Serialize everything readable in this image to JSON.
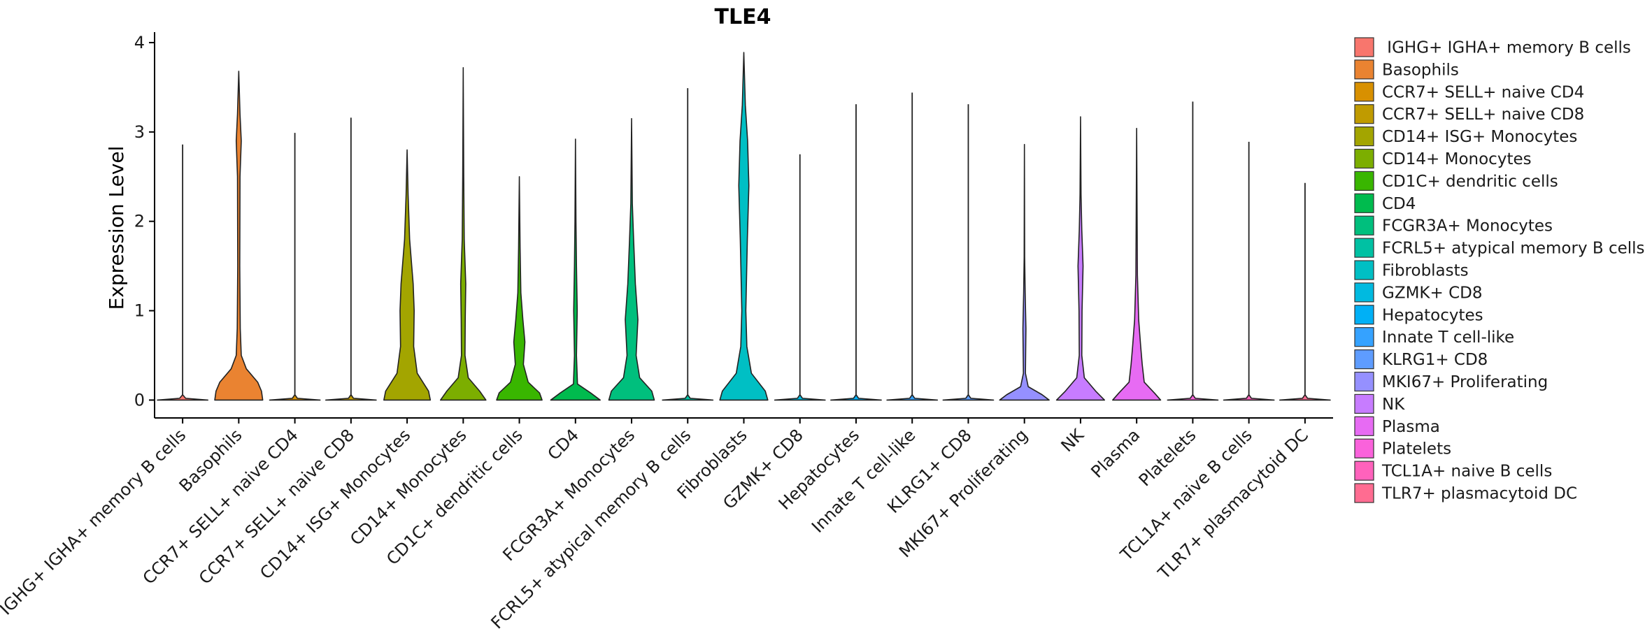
{
  "chart_data": {
    "type": "violin",
    "title": "TLE4",
    "xlabel": "",
    "ylabel": "Expression Level",
    "ylim": [
      -0.2,
      4.07
    ],
    "yticks": [
      0,
      1,
      2,
      3,
      4
    ],
    "legend_position": "right",
    "categories": [
      "IGHG+ IGHA+ memory B cells",
      "Basophils",
      "CCR7+ SELL+ naive CD4",
      "CCR7+ SELL+ naive CD8",
      "CD14+ ISG+ Monocytes",
      "CD14+ Monocytes",
      "CD1C+ dendritic cells",
      "CD4",
      "FCGR3A+ Monocytes",
      "FCRL5+ atypical memory B cells",
      "Fibroblasts",
      "GZMK+ CD8",
      "Hepatocytes",
      "Innate T cell-like",
      "KLRG1+ CD8",
      "MKI67+ Proliferating",
      "NK",
      "Plasma",
      "Platelets",
      "TCL1A+ naive B cells",
      "TLR7+ plasmacytoid DC"
    ],
    "legend_labels": [
      " IGHG+ IGHA+ memory B cells",
      "Basophils",
      "CCR7+ SELL+ naive CD4",
      "CCR7+ SELL+ naive CD8",
      "CD14+ ISG+ Monocytes",
      "CD14+ Monocytes",
      "CD1C+ dendritic cells",
      "CD4",
      "FCGR3A+ Monocytes",
      "FCRL5+ atypical memory B cells",
      "Fibroblasts",
      "GZMK+ CD8",
      "Hepatocytes",
      "Innate T cell-like",
      "KLRG1+ CD8",
      "MKI67+ Proliferating",
      "NK",
      "Plasma",
      "Platelets",
      "TCL1A+ naive B cells",
      "TLR7+ plasmacytoid DC"
    ],
    "colors": [
      "#F8766D",
      "#EA8331",
      "#D89000",
      "#C09B00",
      "#A3A500",
      "#7CAE00",
      "#39B600",
      "#00BB4E",
      "#00BF7D",
      "#00C1A3",
      "#00BFC4",
      "#00BAE0",
      "#00B0F6",
      "#35A2FF",
      "#5E9CFF",
      "#9590FF",
      "#C77CFF",
      "#E76BF3",
      "#FA62DB",
      "#FF62BC",
      "#FF6C91"
    ],
    "max_values": [
      2.86,
      3.68,
      2.99,
      3.16,
      2.8,
      3.72,
      2.5,
      2.92,
      3.15,
      3.49,
      3.89,
      2.75,
      3.31,
      3.44,
      3.31,
      2.86,
      3.17,
      3.04,
      3.34,
      2.89,
      2.43
    ],
    "density_profiles": [
      [
        [
          0,
          1.0
        ],
        [
          0.02,
          0.12
        ],
        [
          0.06,
          0.0
        ]
      ],
      [
        [
          0,
          0.95
        ],
        [
          0.1,
          0.9
        ],
        [
          0.2,
          0.75
        ],
        [
          0.35,
          0.3
        ],
        [
          0.5,
          0.1
        ],
        [
          0.8,
          0.06
        ],
        [
          1.5,
          0.04
        ],
        [
          2.5,
          0.05
        ],
        [
          2.9,
          0.1
        ],
        [
          3.2,
          0.05
        ],
        [
          3.68,
          0.0
        ]
      ],
      [
        [
          0,
          1.0
        ],
        [
          0.02,
          0.1
        ],
        [
          0.06,
          0.0
        ]
      ],
      [
        [
          0,
          1.0
        ],
        [
          0.02,
          0.1
        ],
        [
          0.06,
          0.0
        ]
      ],
      [
        [
          0,
          0.92
        ],
        [
          0.1,
          0.85
        ],
        [
          0.3,
          0.4
        ],
        [
          0.6,
          0.26
        ],
        [
          1.0,
          0.28
        ],
        [
          1.3,
          0.24
        ],
        [
          1.8,
          0.1
        ],
        [
          2.3,
          0.04
        ],
        [
          2.8,
          0.0
        ]
      ],
      [
        [
          0,
          0.9
        ],
        [
          0.1,
          0.65
        ],
        [
          0.25,
          0.2
        ],
        [
          0.5,
          0.07
        ],
        [
          0.9,
          0.08
        ],
        [
          1.3,
          0.1
        ],
        [
          1.8,
          0.04
        ],
        [
          2.5,
          0.02
        ],
        [
          3.72,
          0.0
        ]
      ],
      [
        [
          0,
          0.9
        ],
        [
          0.08,
          0.8
        ],
        [
          0.2,
          0.35
        ],
        [
          0.4,
          0.16
        ],
        [
          0.65,
          0.22
        ],
        [
          0.9,
          0.14
        ],
        [
          1.2,
          0.06
        ],
        [
          1.7,
          0.03
        ],
        [
          2.5,
          0.0
        ]
      ],
      [
        [
          0,
          0.98
        ],
        [
          0.08,
          0.6
        ],
        [
          0.18,
          0.08
        ],
        [
          0.5,
          0.04
        ],
        [
          1.0,
          0.07
        ],
        [
          1.5,
          0.04
        ],
        [
          2.0,
          0.02
        ],
        [
          2.92,
          0.0
        ]
      ],
      [
        [
          0,
          0.9
        ],
        [
          0.1,
          0.8
        ],
        [
          0.25,
          0.32
        ],
        [
          0.5,
          0.18
        ],
        [
          0.9,
          0.25
        ],
        [
          1.3,
          0.15
        ],
        [
          1.8,
          0.08
        ],
        [
          2.2,
          0.03
        ],
        [
          3.15,
          0.0
        ]
      ],
      [
        [
          0,
          1.0
        ],
        [
          0.02,
          0.1
        ],
        [
          0.06,
          0.0
        ]
      ],
      [
        [
          0,
          0.95
        ],
        [
          0.1,
          0.85
        ],
        [
          0.3,
          0.3
        ],
        [
          0.6,
          0.12
        ],
        [
          1.0,
          0.08
        ],
        [
          1.8,
          0.14
        ],
        [
          2.4,
          0.2
        ],
        [
          2.9,
          0.15
        ],
        [
          3.3,
          0.06
        ],
        [
          3.89,
          0.0
        ]
      ],
      [
        [
          0,
          1.0
        ],
        [
          0.02,
          0.1
        ],
        [
          0.06,
          0.0
        ]
      ],
      [
        [
          0,
          1.0
        ],
        [
          0.02,
          0.1
        ],
        [
          0.06,
          0.0
        ]
      ],
      [
        [
          0,
          1.0
        ],
        [
          0.02,
          0.1
        ],
        [
          0.06,
          0.0
        ]
      ],
      [
        [
          0,
          1.0
        ],
        [
          0.02,
          0.1
        ],
        [
          0.06,
          0.0
        ]
      ],
      [
        [
          0,
          0.98
        ],
        [
          0.06,
          0.7
        ],
        [
          0.15,
          0.15
        ],
        [
          0.3,
          0.04
        ],
        [
          0.8,
          0.06
        ],
        [
          1.2,
          0.03
        ],
        [
          1.6,
          0.01
        ],
        [
          2.86,
          0.0
        ]
      ],
      [
        [
          0,
          0.95
        ],
        [
          0.1,
          0.6
        ],
        [
          0.25,
          0.15
        ],
        [
          0.5,
          0.05
        ],
        [
          1.0,
          0.06
        ],
        [
          1.5,
          0.1
        ],
        [
          1.9,
          0.05
        ],
        [
          2.3,
          0.02
        ],
        [
          3.17,
          0.0
        ]
      ],
      [
        [
          0,
          0.95
        ],
        [
          0.08,
          0.7
        ],
        [
          0.2,
          0.3
        ],
        [
          0.4,
          0.22
        ],
        [
          0.6,
          0.16
        ],
        [
          0.9,
          0.08
        ],
        [
          1.4,
          0.03
        ],
        [
          3.04,
          0.0
        ]
      ],
      [
        [
          0,
          1.0
        ],
        [
          0.02,
          0.1
        ],
        [
          0.06,
          0.0
        ]
      ],
      [
        [
          0,
          1.0
        ],
        [
          0.02,
          0.1
        ],
        [
          0.06,
          0.0
        ]
      ],
      [
        [
          0,
          1.0
        ],
        [
          0.02,
          0.1
        ],
        [
          0.06,
          0.0
        ]
      ]
    ]
  }
}
